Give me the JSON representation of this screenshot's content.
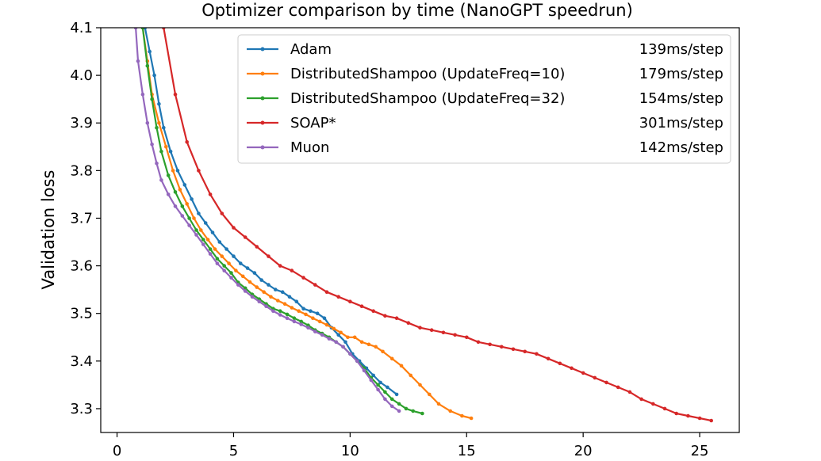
{
  "chart_data": {
    "type": "line",
    "title": "Optimizer comparison by time (NanoGPT speedrun)",
    "xlabel": "",
    "ylabel": "Validation loss",
    "xlim": [
      -0.7,
      26.7
    ],
    "ylim": [
      3.25,
      4.1
    ],
    "xticks": [
      0,
      5,
      10,
      15,
      20,
      25
    ],
    "yticks": [
      3.3,
      3.4,
      3.5,
      3.6,
      3.7,
      3.8,
      3.9,
      4.0,
      4.1
    ],
    "grid": false,
    "legend_position": "upper-right",
    "series": [
      {
        "name": "Adam",
        "suffix": "139ms/step",
        "color": "#1f77b4",
        "points": [
          [
            1.2,
            4.1
          ],
          [
            1.4,
            4.05
          ],
          [
            1.6,
            4.0
          ],
          [
            1.8,
            3.94
          ],
          [
            2.0,
            3.89
          ],
          [
            2.3,
            3.84
          ],
          [
            2.6,
            3.8
          ],
          [
            2.9,
            3.77
          ],
          [
            3.2,
            3.74
          ],
          [
            3.5,
            3.71
          ],
          [
            3.8,
            3.69
          ],
          [
            4.1,
            3.67
          ],
          [
            4.4,
            3.65
          ],
          [
            4.7,
            3.635
          ],
          [
            5.0,
            3.62
          ],
          [
            5.3,
            3.605
          ],
          [
            5.6,
            3.595
          ],
          [
            5.9,
            3.585
          ],
          [
            6.2,
            3.57
          ],
          [
            6.5,
            3.56
          ],
          [
            6.8,
            3.55
          ],
          [
            7.1,
            3.545
          ],
          [
            7.4,
            3.535
          ],
          [
            7.7,
            3.525
          ],
          [
            8.0,
            3.51
          ],
          [
            8.3,
            3.505
          ],
          [
            8.6,
            3.5
          ],
          [
            8.9,
            3.49
          ],
          [
            9.2,
            3.47
          ],
          [
            9.5,
            3.455
          ],
          [
            9.8,
            3.44
          ],
          [
            10.1,
            3.415
          ],
          [
            10.4,
            3.4
          ],
          [
            10.7,
            3.385
          ],
          [
            11.0,
            3.37
          ],
          [
            11.3,
            3.355
          ],
          [
            11.6,
            3.345
          ],
          [
            12.0,
            3.33
          ]
        ]
      },
      {
        "name": "DistributedShampoo (UpdateFreq=10)",
        "suffix": "179ms/step",
        "color": "#ff7f0e",
        "points": [
          [
            1.1,
            4.1
          ],
          [
            1.3,
            4.03
          ],
          [
            1.5,
            3.96
          ],
          [
            1.8,
            3.9
          ],
          [
            2.1,
            3.85
          ],
          [
            2.4,
            3.8
          ],
          [
            2.7,
            3.76
          ],
          [
            3.0,
            3.73
          ],
          [
            3.3,
            3.7
          ],
          [
            3.6,
            3.675
          ],
          [
            3.9,
            3.655
          ],
          [
            4.2,
            3.635
          ],
          [
            4.5,
            3.62
          ],
          [
            4.8,
            3.605
          ],
          [
            5.1,
            3.59
          ],
          [
            5.4,
            3.578
          ],
          [
            5.7,
            3.566
          ],
          [
            6.0,
            3.555
          ],
          [
            6.3,
            3.545
          ],
          [
            6.6,
            3.535
          ],
          [
            6.9,
            3.527
          ],
          [
            7.2,
            3.52
          ],
          [
            7.5,
            3.512
          ],
          [
            7.8,
            3.505
          ],
          [
            8.1,
            3.498
          ],
          [
            8.4,
            3.49
          ],
          [
            8.7,
            3.483
          ],
          [
            9.0,
            3.476
          ],
          [
            9.3,
            3.468
          ],
          [
            9.6,
            3.46
          ],
          [
            9.9,
            3.45
          ],
          [
            10.2,
            3.45
          ],
          [
            10.5,
            3.44
          ],
          [
            10.8,
            3.435
          ],
          [
            11.1,
            3.43
          ],
          [
            11.4,
            3.42
          ],
          [
            11.8,
            3.405
          ],
          [
            12.2,
            3.39
          ],
          [
            12.6,
            3.37
          ],
          [
            13.0,
            3.35
          ],
          [
            13.4,
            3.33
          ],
          [
            13.8,
            3.31
          ],
          [
            14.3,
            3.295
          ],
          [
            14.8,
            3.285
          ],
          [
            15.2,
            3.28
          ]
        ]
      },
      {
        "name": "DistributedShampoo (UpdateFreq=32)",
        "suffix": "154ms/step",
        "color": "#2ca02c",
        "points": [
          [
            1.1,
            4.1
          ],
          [
            1.3,
            4.02
          ],
          [
            1.5,
            3.95
          ],
          [
            1.7,
            3.89
          ],
          [
            1.9,
            3.84
          ],
          [
            2.2,
            3.79
          ],
          [
            2.5,
            3.755
          ],
          [
            2.8,
            3.725
          ],
          [
            3.1,
            3.7
          ],
          [
            3.4,
            3.675
          ],
          [
            3.7,
            3.655
          ],
          [
            4.0,
            3.635
          ],
          [
            4.3,
            3.615
          ],
          [
            4.6,
            3.6
          ],
          [
            4.9,
            3.585
          ],
          [
            5.2,
            3.565
          ],
          [
            5.5,
            3.553
          ],
          [
            5.8,
            3.54
          ],
          [
            6.1,
            3.53
          ],
          [
            6.4,
            3.52
          ],
          [
            6.7,
            3.51
          ],
          [
            7.0,
            3.505
          ],
          [
            7.3,
            3.498
          ],
          [
            7.6,
            3.49
          ],
          [
            7.9,
            3.483
          ],
          [
            8.2,
            3.475
          ],
          [
            8.5,
            3.465
          ],
          [
            8.8,
            3.458
          ],
          [
            9.1,
            3.45
          ],
          [
            9.4,
            3.44
          ],
          [
            9.7,
            3.43
          ],
          [
            10.0,
            3.415
          ],
          [
            10.3,
            3.4
          ],
          [
            10.6,
            3.385
          ],
          [
            10.9,
            3.365
          ],
          [
            11.2,
            3.35
          ],
          [
            11.5,
            3.335
          ],
          [
            11.8,
            3.32
          ],
          [
            12.1,
            3.31
          ],
          [
            12.4,
            3.3
          ],
          [
            12.7,
            3.295
          ],
          [
            13.1,
            3.29
          ]
        ]
      },
      {
        "name": "SOAP*",
        "suffix": "301ms/step",
        "color": "#d62728",
        "points": [
          [
            2.0,
            4.1
          ],
          [
            2.5,
            3.96
          ],
          [
            3.0,
            3.86
          ],
          [
            3.5,
            3.8
          ],
          [
            4.0,
            3.75
          ],
          [
            4.5,
            3.71
          ],
          [
            5.0,
            3.68
          ],
          [
            5.5,
            3.66
          ],
          [
            6.0,
            3.64
          ],
          [
            6.5,
            3.62
          ],
          [
            7.0,
            3.6
          ],
          [
            7.5,
            3.59
          ],
          [
            8.0,
            3.575
          ],
          [
            8.5,
            3.56
          ],
          [
            9.0,
            3.545
          ],
          [
            9.5,
            3.535
          ],
          [
            10.0,
            3.525
          ],
          [
            10.5,
            3.515
          ],
          [
            11.0,
            3.505
          ],
          [
            11.5,
            3.495
          ],
          [
            12.0,
            3.49
          ],
          [
            12.5,
            3.48
          ],
          [
            13.0,
            3.47
          ],
          [
            13.5,
            3.465
          ],
          [
            14.0,
            3.46
          ],
          [
            14.5,
            3.455
          ],
          [
            15.0,
            3.45
          ],
          [
            15.5,
            3.44
          ],
          [
            16.0,
            3.435
          ],
          [
            16.5,
            3.43
          ],
          [
            17.0,
            3.425
          ],
          [
            17.5,
            3.42
          ],
          [
            18.0,
            3.415
          ],
          [
            18.5,
            3.405
          ],
          [
            19.0,
            3.395
          ],
          [
            19.5,
            3.385
          ],
          [
            20.0,
            3.375
          ],
          [
            20.5,
            3.365
          ],
          [
            21.0,
            3.355
          ],
          [
            21.5,
            3.345
          ],
          [
            22.0,
            3.335
          ],
          [
            22.5,
            3.32
          ],
          [
            23.0,
            3.31
          ],
          [
            23.5,
            3.3
          ],
          [
            24.0,
            3.29
          ],
          [
            24.5,
            3.285
          ],
          [
            25.0,
            3.28
          ],
          [
            25.5,
            3.275
          ]
        ]
      },
      {
        "name": "Muon",
        "suffix": "142ms/step",
        "color": "#9467bd",
        "points": [
          [
            0.8,
            4.1
          ],
          [
            0.9,
            4.03
          ],
          [
            1.1,
            3.96
          ],
          [
            1.3,
            3.9
          ],
          [
            1.5,
            3.855
          ],
          [
            1.7,
            3.815
          ],
          [
            1.9,
            3.78
          ],
          [
            2.2,
            3.75
          ],
          [
            2.5,
            3.725
          ],
          [
            2.8,
            3.705
          ],
          [
            3.1,
            3.685
          ],
          [
            3.4,
            3.665
          ],
          [
            3.7,
            3.645
          ],
          [
            4.0,
            3.625
          ],
          [
            4.3,
            3.605
          ],
          [
            4.6,
            3.59
          ],
          [
            4.9,
            3.575
          ],
          [
            5.2,
            3.56
          ],
          [
            5.5,
            3.547
          ],
          [
            5.8,
            3.535
          ],
          [
            6.1,
            3.525
          ],
          [
            6.4,
            3.515
          ],
          [
            6.7,
            3.505
          ],
          [
            7.0,
            3.497
          ],
          [
            7.3,
            3.49
          ],
          [
            7.6,
            3.483
          ],
          [
            7.9,
            3.477
          ],
          [
            8.2,
            3.47
          ],
          [
            8.5,
            3.462
          ],
          [
            8.8,
            3.455
          ],
          [
            9.1,
            3.447
          ],
          [
            9.4,
            3.44
          ],
          [
            9.7,
            3.43
          ],
          [
            10.0,
            3.415
          ],
          [
            10.3,
            3.4
          ],
          [
            10.6,
            3.38
          ],
          [
            10.9,
            3.36
          ],
          [
            11.2,
            3.34
          ],
          [
            11.5,
            3.32
          ],
          [
            11.8,
            3.305
          ],
          [
            12.1,
            3.295
          ]
        ]
      }
    ]
  }
}
